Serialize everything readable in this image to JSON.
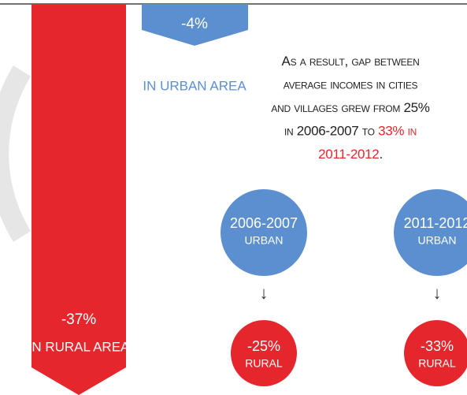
{
  "rural_bar": {
    "value": "-37%",
    "label": "IN RURAL AREA"
  },
  "urban_bar": {
    "value": "-4%",
    "label": "IN URBAN AREA"
  },
  "summary": {
    "lines": [
      [
        {
          "text": "As a result, gap between"
        }
      ],
      [
        {
          "text": "average incomes in cities"
        }
      ],
      [
        {
          "text": "and villages grew from 25%"
        }
      ],
      [
        {
          "text": "in 2006-2007 to "
        },
        {
          "text": "33% in",
          "color": "#e5272d"
        }
      ],
      [
        {
          "text": "2011-2012",
          "color": "#e5272d"
        },
        {
          "text": "."
        }
      ]
    ]
  },
  "comparisons": [
    {
      "period": "2006-2007",
      "urban": "URBAN",
      "arrow": "↓",
      "gap": "-25%",
      "rural": "RURAL"
    },
    {
      "period": "2011-2012",
      "urban": "URBAN",
      "arrow": "↓",
      "gap": "-33%",
      "rural": "RURAL"
    }
  ]
}
